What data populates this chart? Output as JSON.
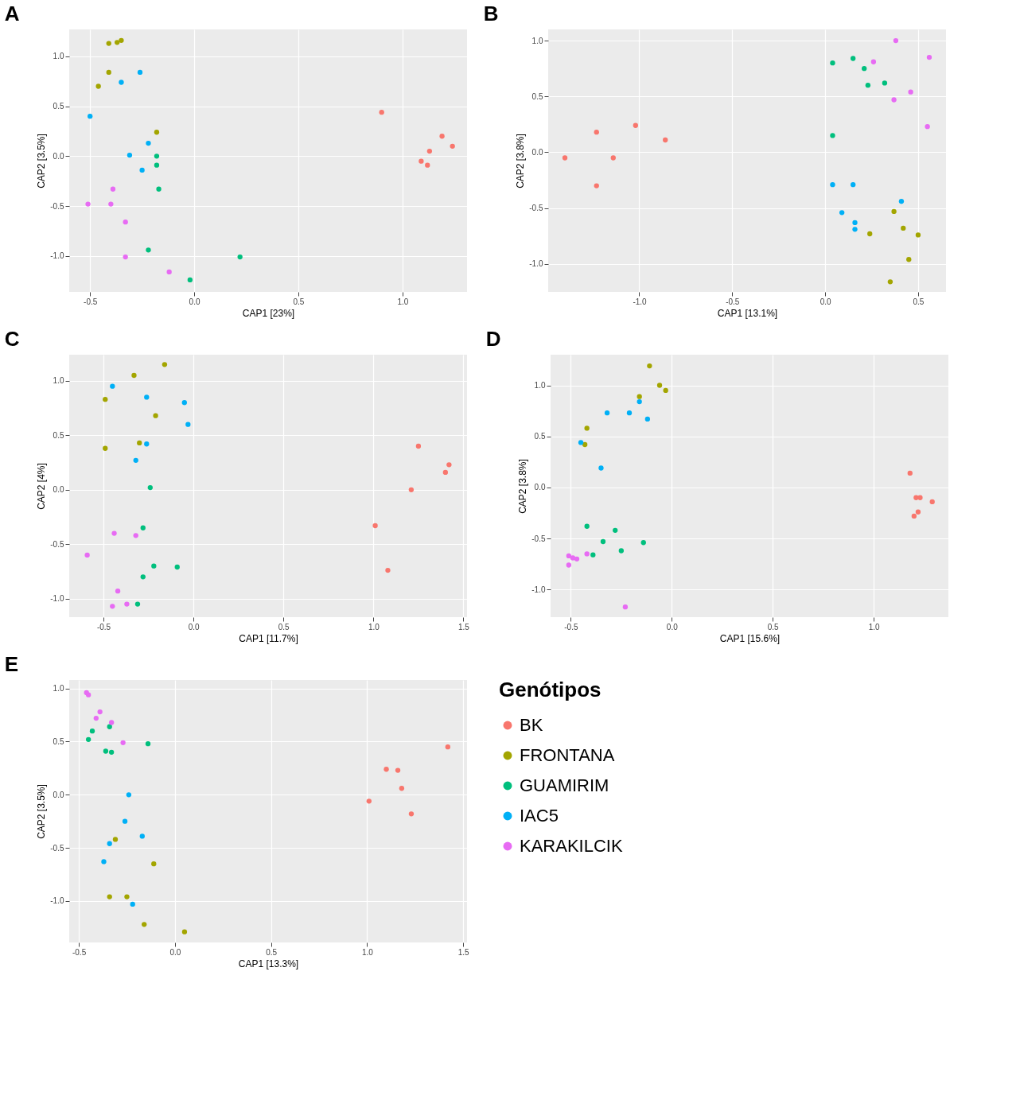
{
  "chart_data": [
    {
      "type": "scatter",
      "title": "A",
      "xlabel": "CAP1 [23%]",
      "ylabel": "CAP2 [3.5%]",
      "marker": "circle",
      "grid": true,
      "xlim": [
        -0.6,
        1.31
      ],
      "ylim": [
        -1.36,
        1.27
      ],
      "xticks": [
        {
          "value": -0.5,
          "label": "-0.5"
        },
        {
          "value": 0,
          "label": "0.0"
        },
        {
          "value": 0.5,
          "label": "0.5"
        },
        {
          "value": 1,
          "label": "1.0"
        }
      ],
      "yticks": [
        {
          "value": -1,
          "label": "-1.0"
        },
        {
          "value": -0.5,
          "label": "-0.5"
        },
        {
          "value": 0,
          "label": "0.0"
        },
        {
          "value": 0.5,
          "label": "0.5"
        },
        {
          "value": 1,
          "label": "1.0"
        }
      ],
      "series": [
        {
          "color": "#f8766d",
          "x": [
            0.9,
            1.19,
            1.24,
            1.13,
            1.09,
            1.12
          ],
          "values": [
            0.44,
            0.2,
            0.1,
            0.05,
            -0.05,
            -0.09
          ]
        },
        {
          "color": "#a3a500",
          "x": [
            -0.41,
            -0.37,
            -0.35,
            -0.41,
            -0.46,
            -0.18
          ],
          "values": [
            1.13,
            1.14,
            1.16,
            0.84,
            0.7,
            0.24
          ]
        },
        {
          "color": "#00bf7d",
          "x": [
            -0.18,
            -0.18,
            -0.17,
            -0.22,
            -0.02,
            0.22
          ],
          "values": [
            0.0,
            -0.09,
            -0.33,
            -0.94,
            -1.24,
            -1.01
          ]
        },
        {
          "color": "#00b0f6",
          "x": [
            -0.26,
            -0.35,
            -0.5,
            -0.22,
            -0.31,
            -0.25
          ],
          "values": [
            0.84,
            0.74,
            0.4,
            0.13,
            0.01,
            -0.14
          ]
        },
        {
          "color": "#e76bf3",
          "x": [
            -0.39,
            -0.51,
            -0.4,
            -0.33,
            -0.33,
            -0.12
          ],
          "values": [
            -0.33,
            -0.48,
            -0.48,
            -0.66,
            -1.01,
            -1.16
          ]
        }
      ]
    },
    {
      "type": "scatter",
      "title": "B",
      "xlabel": "CAP1 [13.1%]",
      "ylabel": "CAP2 [3.8%]",
      "marker": "circle",
      "grid": true,
      "xlim": [
        -1.49,
        0.65
      ],
      "ylim": [
        -1.25,
        1.1
      ],
      "xticks": [
        {
          "value": -1,
          "label": "-1.0"
        },
        {
          "value": -0.5,
          "label": "-0.5"
        },
        {
          "value": 0,
          "label": "0.0"
        },
        {
          "value": 0.5,
          "label": "0.5"
        }
      ],
      "yticks": [
        {
          "value": -1,
          "label": "-1.0"
        },
        {
          "value": -0.5,
          "label": "-0.5"
        },
        {
          "value": 0,
          "label": "0.0"
        },
        {
          "value": 0.5,
          "label": "0.5"
        },
        {
          "value": 1,
          "label": "1.0"
        }
      ],
      "series": [
        {
          "color": "#f8766d",
          "x": [
            -1.4,
            -1.23,
            -1.02,
            -0.86,
            -1.14,
            -1.23
          ],
          "values": [
            -0.05,
            0.18,
            0.24,
            0.11,
            -0.05,
            -0.3
          ]
        },
        {
          "color": "#a3a500",
          "x": [
            0.37,
            0.42,
            0.24,
            0.5,
            0.45,
            0.35
          ],
          "values": [
            -0.53,
            -0.68,
            -0.73,
            -0.74,
            -0.96,
            -1.16
          ]
        },
        {
          "color": "#00bf7d",
          "x": [
            0.04,
            0.15,
            0.21,
            0.23,
            0.32,
            0.04
          ],
          "values": [
            0.8,
            0.84,
            0.75,
            0.6,
            0.62,
            0.15
          ]
        },
        {
          "color": "#00b0f6",
          "x": [
            0.04,
            0.15,
            0.41,
            0.09,
            0.16,
            0.16
          ],
          "values": [
            -0.29,
            -0.29,
            -0.44,
            -0.54,
            -0.63,
            -0.69
          ]
        },
        {
          "color": "#e76bf3",
          "x": [
            0.38,
            0.56,
            0.26,
            0.46,
            0.37,
            0.55
          ],
          "values": [
            1.0,
            0.85,
            0.81,
            0.54,
            0.47,
            0.23
          ]
        }
      ]
    },
    {
      "type": "scatter",
      "title": "C",
      "xlabel": "CAP1 [11.7%]",
      "ylabel": "CAP2 [4%]",
      "marker": "circle",
      "grid": true,
      "xlim": [
        -0.69,
        1.52
      ],
      "ylim": [
        -1.17,
        1.24
      ],
      "xticks": [
        {
          "value": -0.5,
          "label": "-0.5"
        },
        {
          "value": 0,
          "label": "0.0"
        },
        {
          "value": 0.5,
          "label": "0.5"
        },
        {
          "value": 1,
          "label": "1.0"
        },
        {
          "value": 1.5,
          "label": "1.5"
        }
      ],
      "yticks": [
        {
          "value": -1,
          "label": "-1.0"
        },
        {
          "value": -0.5,
          "label": "-0.5"
        },
        {
          "value": 0,
          "label": "0.0"
        },
        {
          "value": 0.5,
          "label": "0.5"
        },
        {
          "value": 1,
          "label": "1.0"
        }
      ],
      "series": [
        {
          "color": "#f8766d",
          "x": [
            1.25,
            1.42,
            1.4,
            1.21,
            1.01,
            1.08
          ],
          "values": [
            0.4,
            0.23,
            0.16,
            0.0,
            -0.33,
            -0.74
          ]
        },
        {
          "color": "#a3a500",
          "x": [
            -0.16,
            -0.33,
            -0.49,
            -0.21,
            -0.3,
            -0.49
          ],
          "values": [
            1.15,
            1.05,
            0.83,
            0.68,
            0.43,
            0.38
          ]
        },
        {
          "color": "#00bf7d",
          "x": [
            -0.24,
            -0.28,
            -0.22,
            -0.09,
            -0.28,
            -0.31
          ],
          "values": [
            0.02,
            -0.35,
            -0.7,
            -0.71,
            -0.8,
            -1.05
          ]
        },
        {
          "color": "#00b0f6",
          "x": [
            -0.45,
            -0.26,
            -0.05,
            -0.03,
            -0.26,
            -0.32
          ],
          "values": [
            0.95,
            0.85,
            0.8,
            0.6,
            0.42,
            0.27
          ]
        },
        {
          "color": "#e76bf3",
          "x": [
            -0.44,
            -0.32,
            -0.59,
            -0.42,
            -0.45,
            -0.37
          ],
          "values": [
            -0.4,
            -0.42,
            -0.6,
            -0.93,
            -1.07,
            -1.05
          ]
        }
      ]
    },
    {
      "type": "scatter",
      "title": "D",
      "xlabel": "CAP1 [15.6%]",
      "ylabel": "CAP2 [3.8%]",
      "marker": "circle",
      "grid": true,
      "xlim": [
        -0.6,
        1.37
      ],
      "ylim": [
        -1.27,
        1.3
      ],
      "xticks": [
        {
          "value": -0.5,
          "label": "-0.5"
        },
        {
          "value": 0,
          "label": "0.0"
        },
        {
          "value": 0.5,
          "label": "0.5"
        },
        {
          "value": 1,
          "label": "1.0"
        }
      ],
      "yticks": [
        {
          "value": -1,
          "label": "-1.0"
        },
        {
          "value": -0.5,
          "label": "-0.5"
        },
        {
          "value": 0,
          "label": "0.0"
        },
        {
          "value": 0.5,
          "label": "0.5"
        },
        {
          "value": 1,
          "label": "1.0"
        }
      ],
      "series": [
        {
          "color": "#f8766d",
          "x": [
            1.18,
            1.21,
            1.23,
            1.29,
            1.22,
            1.2
          ],
          "values": [
            0.14,
            -0.1,
            -0.1,
            -0.14,
            -0.24,
            -0.28
          ]
        },
        {
          "color": "#a3a500",
          "x": [
            -0.11,
            -0.06,
            -0.03,
            -0.16,
            -0.42,
            -0.43
          ],
          "values": [
            1.19,
            1.0,
            0.95,
            0.89,
            0.58,
            0.42
          ]
        },
        {
          "color": "#00bf7d",
          "x": [
            -0.42,
            -0.28,
            -0.34,
            -0.25,
            -0.39,
            -0.14
          ],
          "values": [
            -0.38,
            -0.42,
            -0.53,
            -0.62,
            -0.66,
            -0.54
          ]
        },
        {
          "color": "#00b0f6",
          "x": [
            -0.16,
            -0.32,
            -0.21,
            -0.12,
            -0.45,
            -0.35
          ],
          "values": [
            0.84,
            0.73,
            0.73,
            0.67,
            0.44,
            0.19
          ]
        },
        {
          "color": "#e76bf3",
          "x": [
            -0.51,
            -0.49,
            -0.47,
            -0.51,
            -0.42,
            -0.23
          ],
          "values": [
            -0.67,
            -0.69,
            -0.7,
            -0.76,
            -0.65,
            -1.17
          ]
        }
      ]
    },
    {
      "type": "scatter",
      "title": "E",
      "xlabel": "CAP1 [13.3%]",
      "ylabel": "CAP2 [3.5%]",
      "marker": "circle",
      "grid": true,
      "legend": "right",
      "legend_title": "Genótipos",
      "xlim": [
        -0.55,
        1.52
      ],
      "ylim": [
        -1.39,
        1.08
      ],
      "xticks": [
        {
          "value": -0.5,
          "label": "-0.5"
        },
        {
          "value": 0,
          "label": "0.0"
        },
        {
          "value": 0.5,
          "label": "0.5"
        },
        {
          "value": 1,
          "label": "1.0"
        },
        {
          "value": 1.5,
          "label": "1.5"
        }
      ],
      "yticks": [
        {
          "value": -1,
          "label": "-1.0"
        },
        {
          "value": -0.5,
          "label": "-0.5"
        },
        {
          "value": 0,
          "label": "0.0"
        },
        {
          "value": 0.5,
          "label": "0.5"
        },
        {
          "value": 1,
          "label": "1.0"
        }
      ],
      "series": [
        {
          "name": "BK",
          "color": "#f8766d",
          "x": [
            1.1,
            1.16,
            1.18,
            1.01,
            1.23,
            1.42
          ],
          "values": [
            0.24,
            0.23,
            0.06,
            -0.06,
            -0.18,
            0.45
          ]
        },
        {
          "name": "FRONTANA",
          "color": "#a3a500",
          "x": [
            -0.31,
            -0.11,
            -0.34,
            -0.25,
            -0.16,
            0.05
          ],
          "values": [
            -0.42,
            -0.65,
            -0.96,
            -0.96,
            -1.22,
            -1.29
          ]
        },
        {
          "name": "GUAMIRIM",
          "color": "#00bf7d",
          "x": [
            -0.34,
            -0.43,
            -0.45,
            -0.14,
            -0.36,
            -0.33
          ],
          "values": [
            0.64,
            0.6,
            0.52,
            0.48,
            0.41,
            0.4
          ]
        },
        {
          "name": "IAC5",
          "color": "#00b0f6",
          "x": [
            -0.24,
            -0.26,
            -0.17,
            -0.34,
            -0.37,
            -0.22
          ],
          "values": [
            0.0,
            -0.25,
            -0.39,
            -0.46,
            -0.63,
            -1.03
          ]
        },
        {
          "name": "KARAKILCIK",
          "color": "#e76bf3",
          "x": [
            -0.46,
            -0.45,
            -0.39,
            -0.41,
            -0.33,
            -0.27
          ],
          "values": [
            0.96,
            0.94,
            0.78,
            0.72,
            0.68,
            0.49
          ]
        }
      ]
    }
  ]
}
